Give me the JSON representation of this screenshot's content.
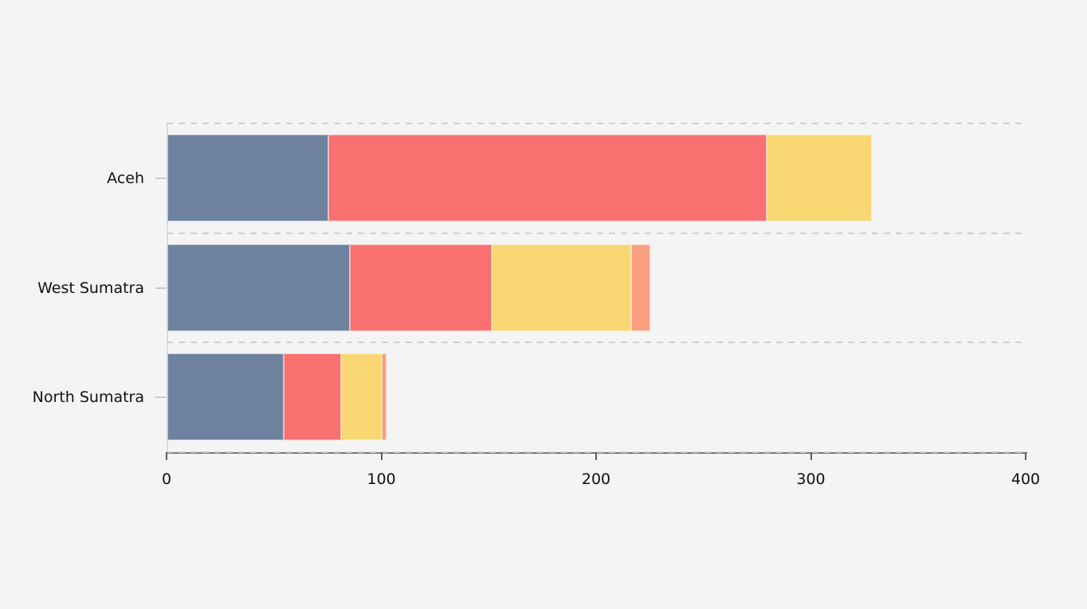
{
  "page": {
    "background_color": "#f4f4f4",
    "title": "",
    "legend": "none"
  },
  "chart_data": {
    "type": "bar",
    "orientation": "horizontal",
    "stacked": true,
    "title": "",
    "xlabel": "",
    "ylabel": "",
    "categories": [
      "Aceh",
      "West Sumatra",
      "North Sumatra"
    ],
    "series": [
      {
        "name": "segment-blue",
        "color": "#6E82A0",
        "values": [
          75,
          85,
          54
        ]
      },
      {
        "name": "segment-red",
        "color": "#F87070",
        "values": [
          204,
          66,
          27
        ]
      },
      {
        "name": "segment-yellow",
        "color": "#F8D671",
        "values": [
          49,
          65,
          19
        ]
      },
      {
        "name": "segment-salmon",
        "color": "#FA9F7F",
        "values": [
          0,
          9,
          2
        ]
      }
    ],
    "totals": [
      328,
      225,
      102
    ],
    "xlim": [
      0,
      400
    ],
    "x_ticks": [
      0,
      100,
      200,
      300,
      400
    ],
    "x_tick_labels": [
      "0",
      "100",
      "200",
      "300",
      "400"
    ],
    "grid": "dashed horizontal band separators",
    "legend_position": "none",
    "colors": {
      "grid_dash": "#cfcfcf",
      "axis_line": "#777777",
      "tick_mark": "#606060",
      "text": "#111111"
    }
  }
}
